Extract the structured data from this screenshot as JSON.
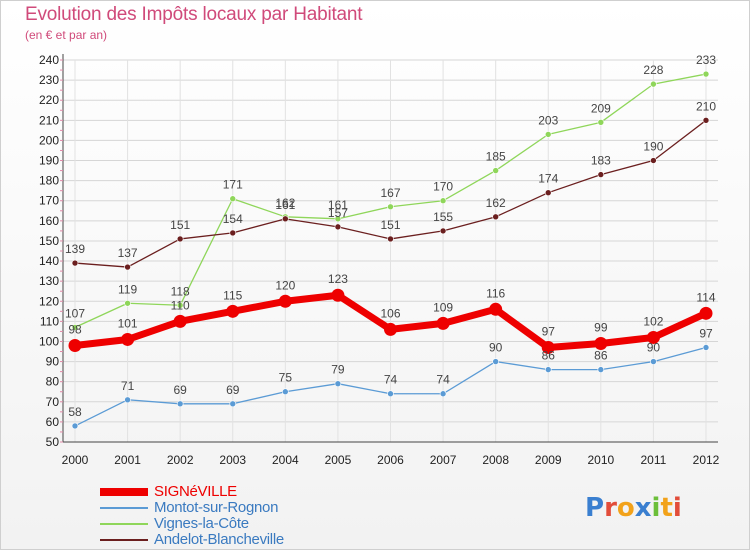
{
  "title": "Evolution des Impôts locaux par Habitant",
  "subtitle": "(en € et par an)",
  "logo": {
    "text": "Proxiti",
    "letters": [
      {
        "ch": "P",
        "color": "#3a7fd0"
      },
      {
        "ch": "r",
        "color": "#e24d3a"
      },
      {
        "ch": "o",
        "color": "#f2a21a"
      },
      {
        "ch": "x",
        "color": "#3a7fd0"
      },
      {
        "ch": "i",
        "color": "#6cbf3a"
      },
      {
        "ch": "t",
        "color": "#f2a21a"
      },
      {
        "ch": "i",
        "color": "#e24d3a"
      }
    ]
  },
  "chart_data": {
    "type": "line",
    "x": [
      "2000",
      "2001",
      "2002",
      "2003",
      "2004",
      "2005",
      "2006",
      "2007",
      "2008",
      "2009",
      "2010",
      "2011",
      "2012"
    ],
    "ylim": [
      50,
      240
    ],
    "yticks": [
      50,
      60,
      70,
      80,
      90,
      100,
      110,
      120,
      130,
      140,
      150,
      160,
      170,
      180,
      190,
      200,
      210,
      220,
      230,
      240
    ],
    "grid": true,
    "legend_position": "bottom-left",
    "series": [
      {
        "name": "SIGNéVILLE",
        "color": "#ee0000",
        "values": [
          98,
          101,
          110,
          115,
          120,
          123,
          106,
          109,
          116,
          97,
          99,
          102,
          114
        ],
        "labels": [
          "98",
          "101",
          "110",
          "115",
          "120",
          "123",
          "106",
          "109",
          "116",
          "97",
          "99",
          "102",
          "114"
        ]
      },
      {
        "name": "Montot-sur-Rognon",
        "color": "#5b9bd5",
        "values": [
          58,
          71,
          69,
          69,
          75,
          79,
          74,
          74,
          90,
          86,
          86,
          90,
          97
        ],
        "labels": [
          "58",
          "71",
          "69",
          "69",
          "75",
          "79",
          "74",
          "74",
          "90",
          "86",
          "86",
          "90",
          "97"
        ]
      },
      {
        "name": "Vignes-la-Côte",
        "color": "#8fd65a",
        "values": [
          107,
          119,
          118,
          171,
          162,
          161,
          167,
          170,
          185,
          203,
          209,
          228,
          233
        ],
        "labels": [
          "107",
          "119",
          "118",
          "171",
          "162",
          "161",
          "167",
          "170",
          "185",
          "203",
          "209",
          "228",
          "233"
        ]
      },
      {
        "name": "Andelot-Blancheville",
        "color": "#6b1f1f",
        "values": [
          139,
          137,
          151,
          154,
          161,
          157,
          151,
          155,
          162,
          174,
          183,
          190,
          210
        ],
        "labels": [
          "139",
          "137",
          "151",
          "154",
          "161",
          "157",
          "151",
          "155",
          "162",
          "174",
          "183",
          "190",
          "210"
        ]
      }
    ]
  }
}
